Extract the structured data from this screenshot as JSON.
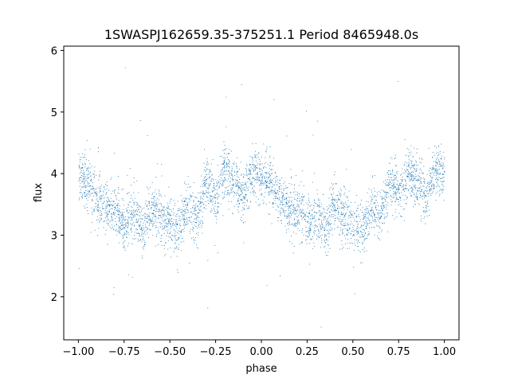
{
  "chart_data": {
    "type": "scatter",
    "title": "1SWASPJ162659.35-375251.1 Period 8465948.0s",
    "xlabel": "phase",
    "ylabel": "flux",
    "xlim": [
      -1.08,
      1.08
    ],
    "ylim": [
      1.3,
      6.07
    ],
    "xticks": [
      -1.0,
      -0.75,
      -0.5,
      -0.25,
      0.0,
      0.25,
      0.5,
      0.75,
      1.0
    ],
    "xtick_labels": [
      "−1.00",
      "−0.75",
      "−0.50",
      "−0.25",
      "0.00",
      "0.25",
      "0.50",
      "0.75",
      "1.00"
    ],
    "yticks": [
      2,
      3,
      4,
      5,
      6
    ],
    "ytick_labels": [
      "2",
      "3",
      "4",
      "5",
      "6"
    ],
    "grid": false,
    "point_color": "#1f77b4",
    "series": [
      {
        "profile_phase": [
          0.0,
          0.05,
          0.1,
          0.15,
          0.2,
          0.25,
          0.3,
          0.35,
          0.4,
          0.45,
          0.5,
          0.55,
          0.6,
          0.65,
          0.7,
          0.75,
          0.8,
          0.85,
          0.9,
          0.95,
          1.0
        ],
        "profile_flux": [
          4.0,
          3.85,
          3.55,
          3.45,
          3.4,
          3.2,
          3.35,
          3.1,
          3.5,
          3.3,
          3.2,
          3.1,
          3.45,
          3.3,
          3.9,
          3.6,
          4.1,
          3.8,
          3.6,
          4.05,
          4.0
        ],
        "spread": 0.35
      }
    ]
  }
}
